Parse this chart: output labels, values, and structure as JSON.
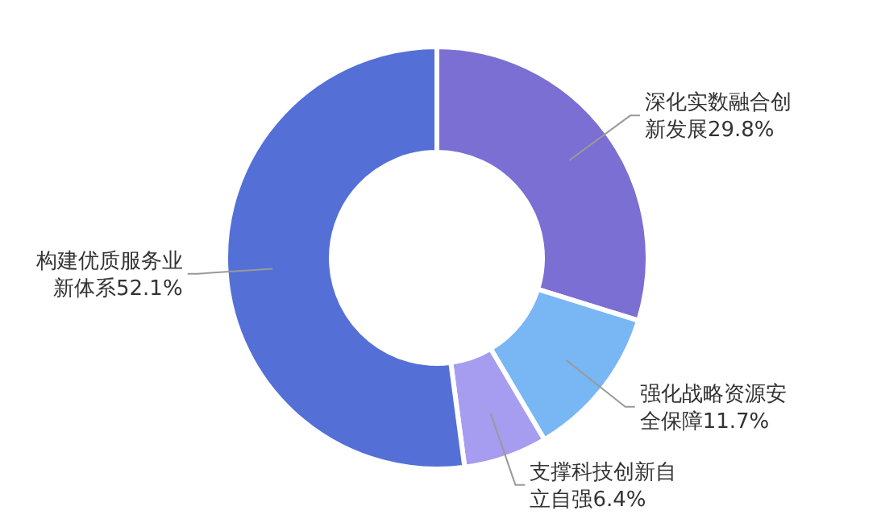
{
  "chart_data": {
    "type": "donut",
    "categories": [
      "深化实数融合创新发展",
      "强化战略资源安全保障",
      "支撑科技创新自立自强",
      "构建优质服务业新体系"
    ],
    "values": [
      29.8,
      11.7,
      6.4,
      52.1
    ],
    "value_labels": [
      "29.8%",
      "11.7%",
      "6.4%",
      "52.1%"
    ],
    "colors": [
      "#7b6fd3",
      "#79b6f4",
      "#a69cf0",
      "#5470d6"
    ]
  }
}
